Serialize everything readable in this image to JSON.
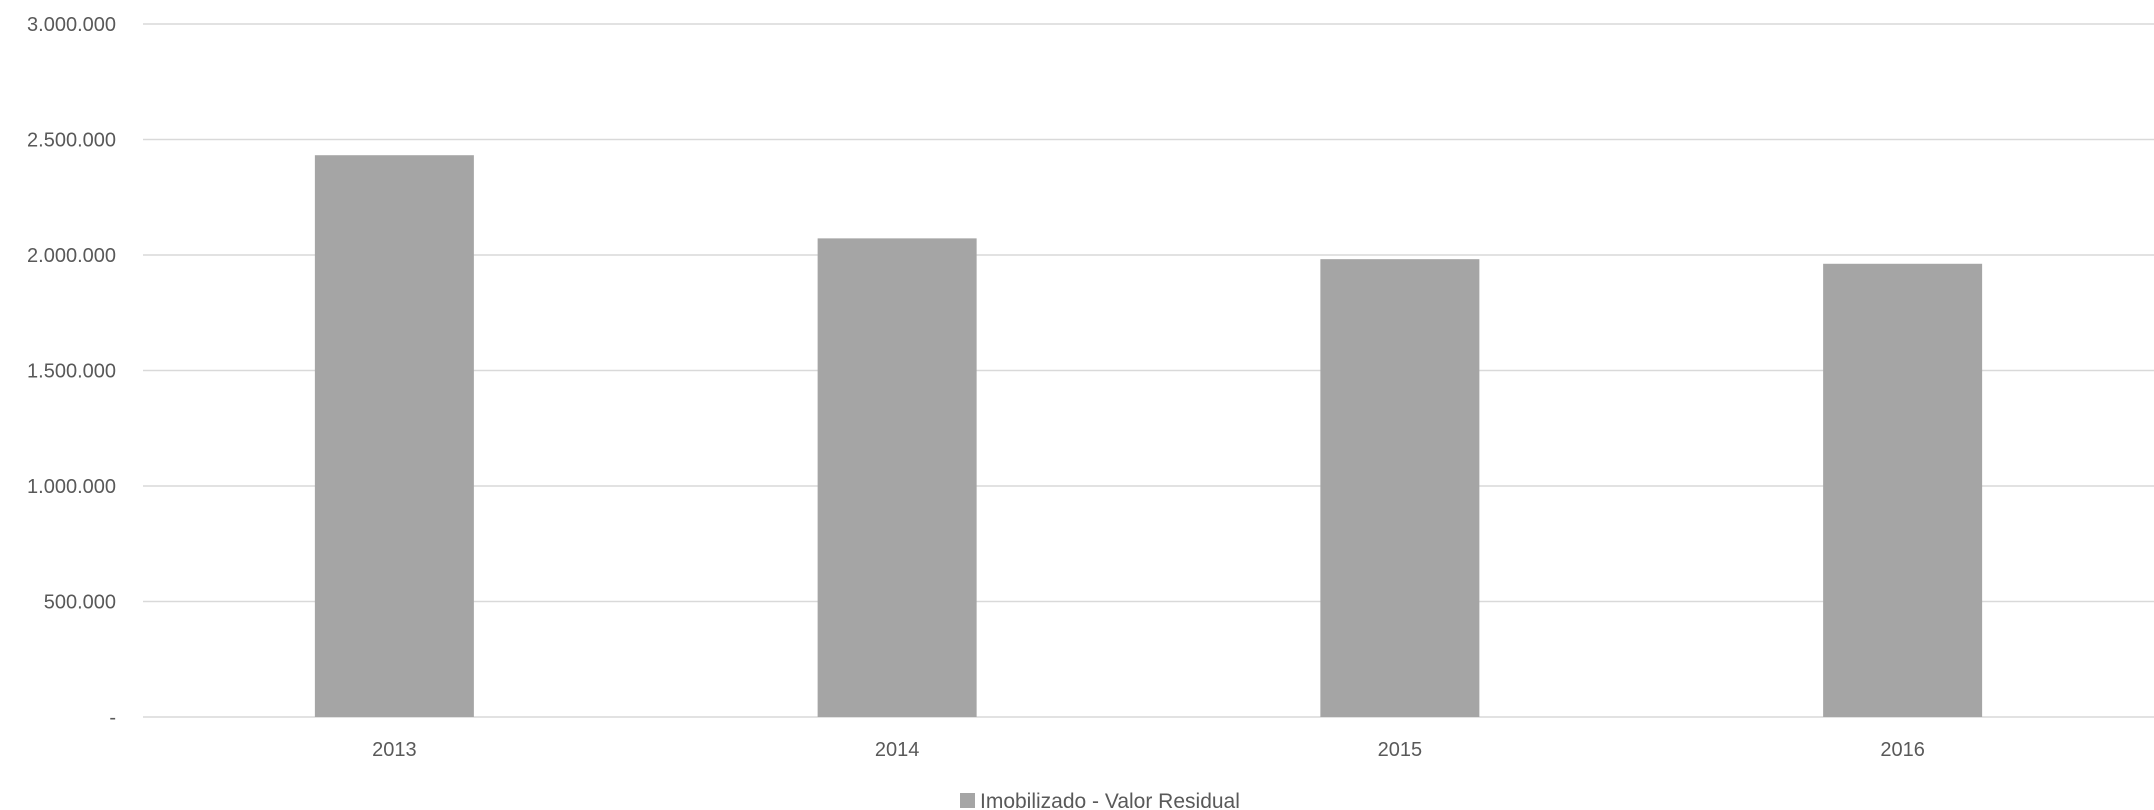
{
  "chart_data": {
    "type": "bar",
    "categories": [
      "2013",
      "2014",
      "2015",
      "2016"
    ],
    "series": [
      {
        "name": "Imobilizado - Valor Residual",
        "values": [
          2432000,
          2072000,
          1982000,
          1962000
        ],
        "color": "#a5a5a5"
      }
    ],
    "ylim": [
      0,
      3000000
    ],
    "yticks": [
      0,
      500000,
      1000000,
      1500000,
      2000000,
      2500000,
      3000000
    ],
    "ytick_labels": [
      "-",
      "500.000",
      "1.000.000",
      "1.500.000",
      "2.000.000",
      "2.500.000",
      "3.000.000"
    ],
    "grid": true,
    "legend": "bottom",
    "gridline_color": "#d9d9d9",
    "text_color": "#595959"
  }
}
